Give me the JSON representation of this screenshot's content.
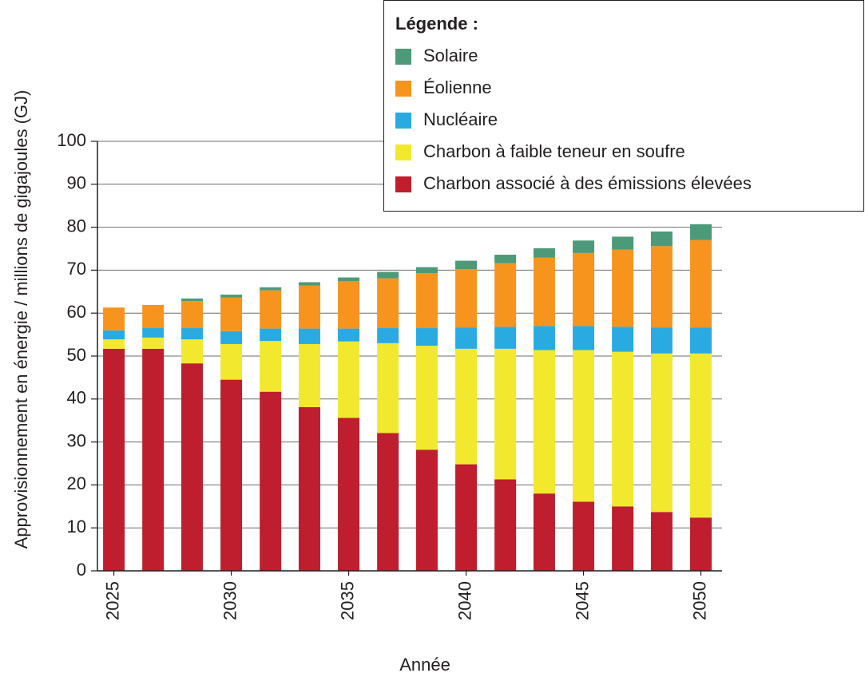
{
  "chart_data": {
    "type": "stacked_bar",
    "x_label": "Année",
    "y_label": "Approvisionnement en énergie / millions de gigajoules (GJ)",
    "legend_title": "Légende :",
    "legend_position": "upper right",
    "grid": true,
    "x": [
      2025,
      2026.67,
      2028.33,
      2030,
      2031.67,
      2033.33,
      2035,
      2036.67,
      2038.33,
      2040,
      2041.67,
      2043.33,
      2045,
      2046.67,
      2048.33,
      2050
    ],
    "xlim": [
      2024.3,
      2050.9
    ],
    "xticks": [
      2025,
      2030,
      2035,
      2040,
      2045,
      2050
    ],
    "ylim": [
      0,
      100
    ],
    "yticks": [
      0,
      10,
      20,
      30,
      40,
      50,
      60,
      70,
      80,
      90,
      100
    ],
    "series": [
      {
        "name": "Charbon associé à des émissions élevées",
        "color": "#be1e2d",
        "values": [
          51.7,
          51.7,
          48.3,
          44.5,
          41.7,
          38.1,
          35.6,
          32.1,
          28.2,
          24.8,
          21.3,
          18.0,
          16.1,
          15.0,
          13.7,
          12.4
        ]
      },
      {
        "name": "Charbon à faible teneur en soufre",
        "color": "#f2e82e",
        "values": [
          2.2,
          2.6,
          5.6,
          8.3,
          11.8,
          14.7,
          17.8,
          20.9,
          24.2,
          26.9,
          30.4,
          33.4,
          35.3,
          36.0,
          36.9,
          38.2
        ]
      },
      {
        "name": "Nucléaire",
        "color": "#29abe2",
        "values": [
          2.1,
          2.2,
          2.6,
          3.0,
          2.9,
          3.6,
          3.0,
          3.5,
          4.1,
          4.9,
          5.1,
          5.6,
          5.6,
          5.8,
          6.0,
          6.0
        ]
      },
      {
        "name": "Éolienne",
        "color": "#f7941d",
        "values": [
          5.3,
          5.4,
          6.3,
          7.8,
          8.9,
          10.0,
          11.0,
          11.6,
          12.8,
          13.6,
          14.8,
          15.9,
          17.0,
          18.0,
          19.0,
          20.4
        ]
      },
      {
        "name": "Solaire",
        "color": "#4d9a78",
        "values": [
          0,
          0,
          0.6,
          0.7,
          0.7,
          0.8,
          0.9,
          1.5,
          1.4,
          2.0,
          2.0,
          2.2,
          2.9,
          3.0,
          3.4,
          3.7
        ]
      }
    ]
  }
}
